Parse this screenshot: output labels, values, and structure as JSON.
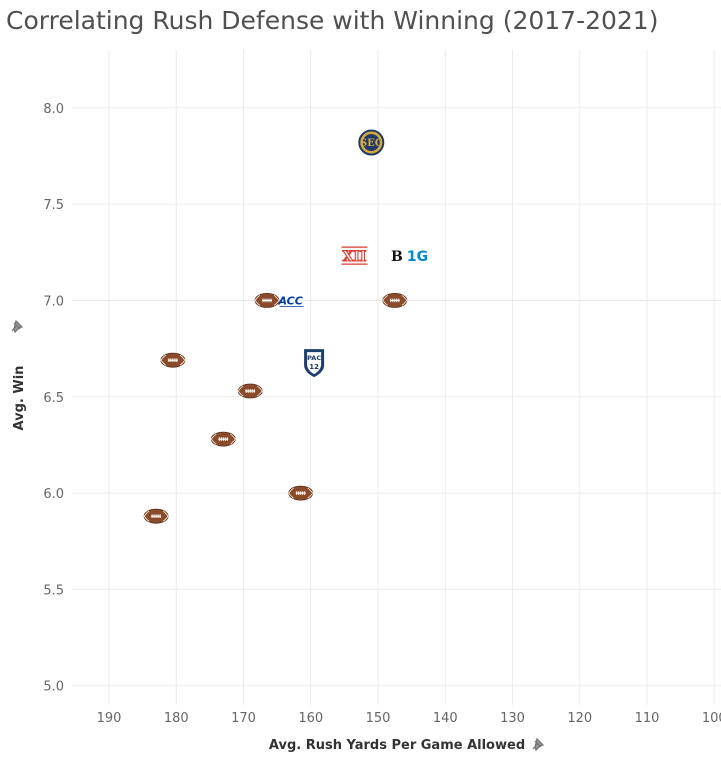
{
  "title": "Correlating Rush Defense with Winning (2017-2021)",
  "chart_data": {
    "type": "scatter",
    "title": "Correlating Rush Defense with Winning (2017-2021)",
    "xlabel": "Avg. Rush Yards Per Game Allowed",
    "ylabel": "Avg. Win",
    "xlim": [
      195.5,
      99
    ],
    "ylim": [
      4.9,
      8.3
    ],
    "x_reversed": true,
    "x_ticks": [
      190,
      180,
      170,
      160,
      150,
      140,
      130,
      120,
      110,
      100
    ],
    "y_ticks": [
      5.0,
      5.5,
      6.0,
      6.5,
      7.0,
      7.5,
      8.0
    ],
    "grid": true,
    "points": [
      {
        "x": 151.0,
        "y": 7.82,
        "marker": "SEC",
        "text": "SEC"
      },
      {
        "x": 146.0,
        "y": 7.23,
        "marker": "B1G",
        "text": "B1G"
      },
      {
        "x": 153.5,
        "y": 7.23,
        "marker": "XII",
        "text": "XII"
      },
      {
        "x": 163.0,
        "y": 7.0,
        "marker": "ACC",
        "text": "ACC"
      },
      {
        "x": 159.5,
        "y": 6.68,
        "marker": "PAC",
        "text": "PAC 12"
      },
      {
        "x": 147.5,
        "y": 7.0,
        "marker": "football"
      },
      {
        "x": 166.5,
        "y": 7.0,
        "marker": "football"
      },
      {
        "x": 180.5,
        "y": 6.69,
        "marker": "football"
      },
      {
        "x": 169.0,
        "y": 6.53,
        "marker": "football"
      },
      {
        "x": 173.0,
        "y": 6.28,
        "marker": "football"
      },
      {
        "x": 161.5,
        "y": 6.0,
        "marker": "football"
      },
      {
        "x": 183.0,
        "y": 5.88,
        "marker": "football"
      }
    ]
  },
  "colors": {
    "grid": "#ebebeb",
    "football": "#8a4b2a",
    "football_lace": "#ffffff",
    "sec_navy": "#1f3a6b",
    "sec_gold": "#d9a93a",
    "big12_red": "#e03c31",
    "big10_blue": "#0088ce",
    "acc_navy": "#013ca6",
    "pac12_navy": "#1c3f6e"
  },
  "icons": {
    "axis_pin": "pin-icon"
  }
}
